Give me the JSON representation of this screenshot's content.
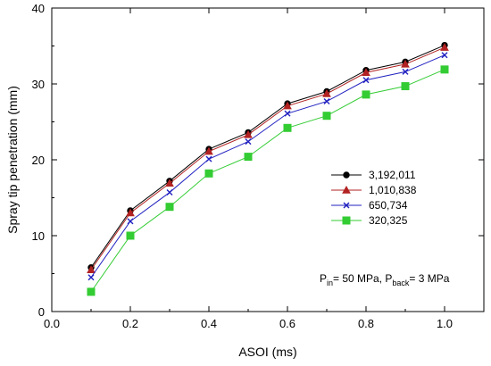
{
  "chart_data": {
    "type": "line",
    "xlabel": "ASOI (ms)",
    "ylabel": "Spray tip penetration (mm)",
    "xlim": [
      0.0,
      1.1
    ],
    "ylim": [
      0,
      40
    ],
    "xticks": [
      "0.0",
      "0.2",
      "0.4",
      "0.6",
      "0.8",
      "1.0"
    ],
    "xtick_values": [
      0.0,
      0.2,
      0.4,
      0.6,
      0.8,
      1.0
    ],
    "yticks": [
      "0",
      "10",
      "20",
      "30",
      "40"
    ],
    "ytick_values": [
      0,
      10,
      20,
      30,
      40
    ],
    "grid": false,
    "legend_position": "right",
    "x": [
      0.1,
      0.2,
      0.3,
      0.4,
      0.5,
      0.6,
      0.7,
      0.8,
      0.9,
      1.0
    ],
    "series": [
      {
        "name": "3,192,011",
        "color": "#000000",
        "marker": "circle",
        "values": [
          5.8,
          13.3,
          17.2,
          21.4,
          23.6,
          27.4,
          29.0,
          31.8,
          32.9,
          35.1
        ]
      },
      {
        "name": "1,010,838",
        "color": "#b22222",
        "marker": "triangle",
        "values": [
          5.5,
          13.0,
          16.9,
          21.1,
          23.3,
          27.1,
          28.7,
          31.5,
          32.6,
          34.8
        ]
      },
      {
        "name": "650,734",
        "color": "#2020c0",
        "marker": "x",
        "values": [
          4.5,
          11.9,
          15.7,
          20.1,
          22.4,
          26.1,
          27.7,
          30.5,
          31.6,
          33.8
        ]
      },
      {
        "name": "320,325",
        "color": "#33cc33",
        "marker": "square",
        "values": [
          2.6,
          10.0,
          13.8,
          18.2,
          20.4,
          24.2,
          25.8,
          28.6,
          29.7,
          31.9
        ]
      }
    ],
    "annotation": {
      "p1": "P",
      "s1": "in",
      "t1": "= 50 MPa, P",
      "s2": "back",
      "t2": "= 3 MPa"
    }
  }
}
